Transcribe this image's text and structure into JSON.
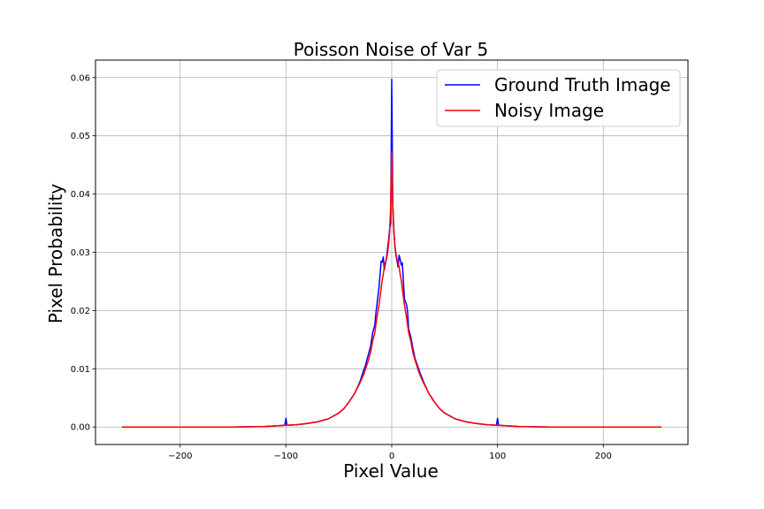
{
  "chart_data": {
    "type": "line",
    "title": "Poisson Noise of Var 5",
    "xlabel": "Pixel Value",
    "ylabel": "Pixel Probability",
    "xlim": [
      -280,
      280
    ],
    "ylim": [
      -0.003,
      0.063
    ],
    "xticks": [
      -200,
      -100,
      0,
      100,
      200
    ],
    "yticks": [
      0.0,
      0.01,
      0.02,
      0.03,
      0.04,
      0.05,
      0.06
    ],
    "xtick_labels": [
      "−200",
      "−100",
      "0",
      "100",
      "200"
    ],
    "ytick_labels": [
      "0.00",
      "0.01",
      "0.02",
      "0.03",
      "0.04",
      "0.05",
      "0.06"
    ],
    "grid": true,
    "legend_position": "top-right",
    "series": [
      {
        "name": "Ground Truth Image",
        "color": "#0000ff",
        "x": [
          -255,
          -200,
          -150,
          -120,
          -101,
          -100,
          -99,
          -90,
          -80,
          -70,
          -60,
          -50,
          -45,
          -40,
          -35,
          -30,
          -27,
          -25,
          -22,
          -20,
          -18,
          -16,
          -15,
          -14,
          -12,
          -10,
          -9,
          -8,
          -7,
          -6,
          -5,
          -4,
          -3,
          -2,
          -1,
          0,
          1,
          2,
          3,
          4,
          5,
          6,
          7,
          8,
          9,
          10,
          12,
          14,
          15,
          16,
          18,
          20,
          22,
          25,
          27,
          30,
          35,
          40,
          45,
          50,
          60,
          70,
          80,
          90,
          99,
          100,
          101,
          120,
          150,
          200,
          255
        ],
        "y": [
          0.0,
          0.0,
          0.0,
          0.0001,
          0.0003,
          0.0015,
          0.0003,
          0.0004,
          0.0006,
          0.0009,
          0.0014,
          0.0024,
          0.0032,
          0.0044,
          0.0058,
          0.0078,
          0.0095,
          0.0105,
          0.0125,
          0.0138,
          0.0162,
          0.0175,
          0.0195,
          0.021,
          0.024,
          0.0285,
          0.0283,
          0.0292,
          0.027,
          0.028,
          0.029,
          0.0305,
          0.032,
          0.034,
          0.035,
          0.0597,
          0.038,
          0.034,
          0.031,
          0.0295,
          0.0285,
          0.0275,
          0.0295,
          0.0288,
          0.0278,
          0.0282,
          0.022,
          0.021,
          0.0198,
          0.0168,
          0.0155,
          0.0135,
          0.0118,
          0.0102,
          0.0092,
          0.0078,
          0.0058,
          0.0044,
          0.0032,
          0.0024,
          0.0014,
          0.0009,
          0.0006,
          0.0004,
          0.0003,
          0.0015,
          0.0003,
          0.0001,
          0.0,
          0.0,
          0.0
        ]
      },
      {
        "name": "Noisy Image",
        "color": "#ff0000",
        "x": [
          -255,
          -200,
          -150,
          -120,
          -100,
          -90,
          -80,
          -70,
          -60,
          -50,
          -45,
          -40,
          -35,
          -30,
          -27,
          -25,
          -22,
          -20,
          -18,
          -16,
          -15,
          -14,
          -12,
          -10,
          -9,
          -8,
          -7,
          -6,
          -5,
          -4,
          -3,
          -2,
          -1,
          0,
          1,
          2,
          3,
          4,
          5,
          6,
          7,
          8,
          9,
          10,
          12,
          14,
          15,
          16,
          18,
          20,
          22,
          25,
          27,
          30,
          35,
          40,
          45,
          50,
          60,
          70,
          80,
          90,
          100,
          120,
          150,
          200,
          255
        ],
        "y": [
          0.0,
          0.0,
          0.0,
          0.0001,
          0.0003,
          0.0004,
          0.0006,
          0.0009,
          0.0014,
          0.0024,
          0.0032,
          0.0044,
          0.0058,
          0.0076,
          0.0088,
          0.0098,
          0.0115,
          0.0128,
          0.0148,
          0.0162,
          0.0175,
          0.0188,
          0.021,
          0.0238,
          0.0252,
          0.0262,
          0.0275,
          0.0282,
          0.0288,
          0.0298,
          0.0312,
          0.0335,
          0.038,
          0.0473,
          0.038,
          0.0335,
          0.0312,
          0.0298,
          0.0288,
          0.0282,
          0.0275,
          0.0262,
          0.0252,
          0.0238,
          0.021,
          0.0188,
          0.0175,
          0.0162,
          0.0148,
          0.0128,
          0.0115,
          0.0098,
          0.0088,
          0.0076,
          0.0058,
          0.0044,
          0.0032,
          0.0024,
          0.0014,
          0.0009,
          0.0006,
          0.0004,
          0.0003,
          0.0001,
          0.0,
          0.0,
          0.0
        ]
      }
    ]
  }
}
